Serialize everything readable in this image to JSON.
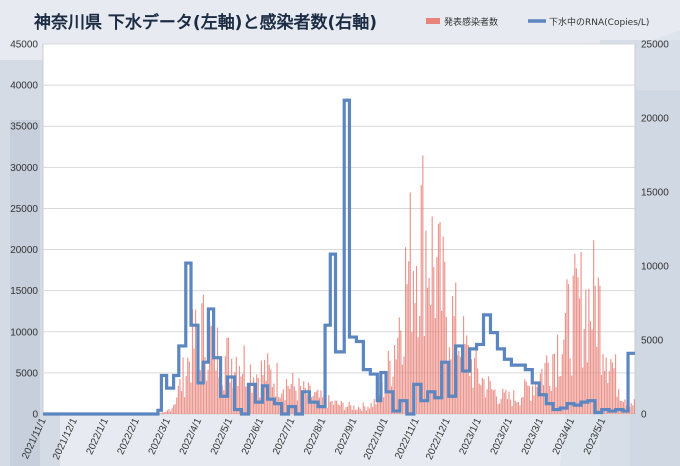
{
  "chart_data": {
    "type": "bar+line",
    "title": "神奈川県 下水データ(左軸)と感染者数(右軸)",
    "legend": [
      {
        "name": "発表感染者数",
        "color": "#e8837a",
        "kind": "bar"
      },
      {
        "name": "下水中のRNA(Copies/L)",
        "color": "#5b86c0",
        "kind": "line"
      }
    ],
    "legend_position": "top-right",
    "left_axis": {
      "min": 0,
      "max": 45000,
      "ticks": [
        "0",
        "5000",
        "10000",
        "15000",
        "20000",
        "25000",
        "30000",
        "35000",
        "40000",
        "45000"
      ]
    },
    "right_axis": {
      "min": 0,
      "max": 25000,
      "ticks": [
        "0",
        "5000",
        "10000",
        "15000",
        "20000",
        "25000"
      ]
    },
    "x_labels": [
      "2021/11/1",
      "2021/12/1",
      "2022/1/1",
      "2022/2/1",
      "2022/3/1",
      "2022/4/1",
      "2022/5/1",
      "2022/6/1",
      "2022/7/1",
      "2022/8/1",
      "2022/9/1",
      "2022/10/1",
      "2022/11/1",
      "2022/12/1",
      "2023/1/1",
      "2023/2/1",
      "2023/3/1",
      "2023/4/1",
      "2023/5/1"
    ],
    "cases_envelope": [
      [
        0,
        0
      ],
      [
        62,
        0
      ],
      [
        66,
        80
      ],
      [
        70,
        300
      ],
      [
        74,
        1500
      ],
      [
        78,
        5000
      ],
      [
        82,
        9000
      ],
      [
        85,
        12500
      ],
      [
        88,
        14500
      ],
      [
        91,
        16000
      ],
      [
        94,
        15000
      ],
      [
        97,
        13500
      ],
      [
        100,
        12000
      ],
      [
        103,
        11000
      ],
      [
        106,
        10500
      ],
      [
        109,
        11000
      ],
      [
        112,
        11500
      ],
      [
        115,
        10000
      ],
      [
        118,
        8500
      ],
      [
        121,
        8000
      ],
      [
        124,
        7800
      ],
      [
        127,
        8200
      ],
      [
        130,
        7500
      ],
      [
        133,
        7000
      ],
      [
        136,
        6500
      ],
      [
        140,
        6000
      ],
      [
        145,
        5000
      ],
      [
        150,
        4200
      ],
      [
        155,
        3500
      ],
      [
        160,
        2800
      ],
      [
        165,
        2200
      ],
      [
        170,
        1800
      ],
      [
        175,
        1500
      ],
      [
        180,
        1300
      ],
      [
        185,
        1500
      ],
      [
        188,
        1800
      ],
      [
        191,
        2500
      ],
      [
        194,
        4000
      ],
      [
        197,
        7000
      ],
      [
        200,
        11000
      ],
      [
        203,
        16000
      ],
      [
        206,
        22000
      ],
      [
        209,
        27000
      ],
      [
        212,
        31000
      ],
      [
        215,
        34000
      ],
      [
        218,
        35500
      ],
      [
        221,
        33000
      ],
      [
        224,
        29000
      ],
      [
        227,
        25000
      ],
      [
        230,
        22000
      ],
      [
        233,
        20000
      ],
      [
        236,
        17000
      ],
      [
        239,
        14500
      ],
      [
        242,
        12000
      ],
      [
        245,
        10000
      ],
      [
        248,
        8500
      ],
      [
        251,
        7000
      ],
      [
        254,
        5800
      ],
      [
        257,
        4800
      ],
      [
        260,
        4000
      ],
      [
        264,
        3200
      ],
      [
        268,
        3000
      ],
      [
        272,
        3300
      ],
      [
        276,
        4200
      ],
      [
        280,
        5500
      ],
      [
        284,
        7000
      ],
      [
        288,
        9000
      ],
      [
        292,
        11500
      ],
      [
        296,
        14000
      ],
      [
        300,
        16500
      ],
      [
        304,
        19000
      ],
      [
        307,
        20500
      ],
      [
        310,
        21500
      ],
      [
        313,
        21000
      ],
      [
        316,
        22000
      ],
      [
        318,
        23000
      ],
      [
        320,
        19000
      ],
      [
        323,
        14000
      ],
      [
        326,
        10500
      ],
      [
        329,
        7000
      ],
      [
        332,
        4500
      ],
      [
        335,
        3000
      ],
      [
        338,
        2200
      ],
      [
        342,
        1800
      ],
      [
        346,
        1500
      ],
      [
        350,
        1300
      ],
      [
        355,
        1100
      ],
      [
        360,
        1200
      ],
      [
        365,
        1400
      ],
      [
        370,
        1500
      ],
      [
        375,
        1500
      ],
      [
        380,
        1500
      ],
      [
        384,
        600
      ],
      [
        388,
        0
      ]
    ],
    "rna_steps": [
      [
        0,
        0
      ],
      [
        60,
        0
      ],
      [
        66,
        250
      ],
      [
        68,
        2600
      ],
      [
        71,
        1750
      ],
      [
        75,
        2600
      ],
      [
        78,
        4600
      ],
      [
        82,
        10200
      ],
      [
        85,
        6000
      ],
      [
        89,
        2100
      ],
      [
        92,
        3500
      ],
      [
        95,
        7100
      ],
      [
        98,
        3800
      ],
      [
        102,
        1200
      ],
      [
        106,
        2500
      ],
      [
        110,
        300
      ],
      [
        114,
        0
      ],
      [
        118,
        2000
      ],
      [
        122,
        800
      ],
      [
        126,
        1900
      ],
      [
        129,
        1000
      ],
      [
        133,
        700
      ],
      [
        137,
        0
      ],
      [
        141,
        500
      ],
      [
        145,
        0
      ],
      [
        149,
        1500
      ],
      [
        153,
        800
      ],
      [
        158,
        500
      ],
      [
        162,
        6000
      ],
      [
        165,
        10800
      ],
      [
        168,
        4200
      ],
      [
        173,
        21200
      ],
      [
        176,
        5200
      ],
      [
        180,
        4900
      ],
      [
        184,
        3000
      ],
      [
        188,
        2700
      ],
      [
        192,
        900
      ],
      [
        194,
        2800
      ],
      [
        197,
        1500
      ],
      [
        201,
        200
      ],
      [
        205,
        900
      ],
      [
        209,
        0
      ],
      [
        213,
        2000
      ],
      [
        217,
        900
      ],
      [
        221,
        1500
      ],
      [
        225,
        1100
      ],
      [
        229,
        3500
      ],
      [
        233,
        1200
      ],
      [
        237,
        4600
      ],
      [
        241,
        2900
      ],
      [
        245,
        4400
      ],
      [
        249,
        4700
      ],
      [
        253,
        6700
      ],
      [
        257,
        5500
      ],
      [
        261,
        4400
      ],
      [
        265,
        3700
      ],
      [
        269,
        3300
      ],
      [
        273,
        3300
      ],
      [
        277,
        3000
      ],
      [
        281,
        2100
      ],
      [
        285,
        1300
      ],
      [
        289,
        700
      ],
      [
        293,
        300
      ],
      [
        297,
        400
      ],
      [
        301,
        700
      ],
      [
        305,
        600
      ],
      [
        309,
        800
      ],
      [
        313,
        900
      ],
      [
        317,
        100
      ],
      [
        321,
        300
      ],
      [
        325,
        200
      ],
      [
        329,
        300
      ],
      [
        333,
        200
      ],
      [
        336,
        4100
      ],
      [
        340,
        4100
      ]
    ]
  }
}
